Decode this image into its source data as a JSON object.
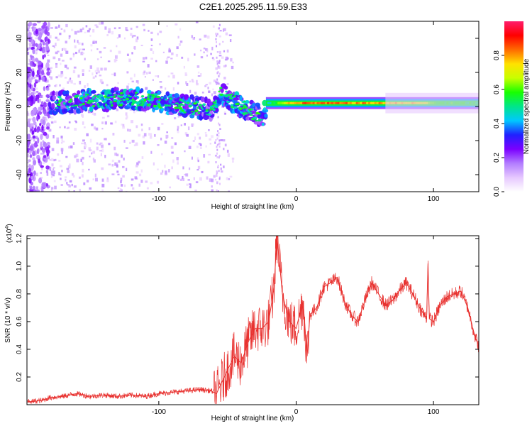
{
  "figure_title": "C2E1.2025.295.11.59.E33",
  "chart_data": [
    {
      "type": "heatmap",
      "title": "C2E1.2025.295.11.59.E33",
      "xlabel": "Height of straight line (km)",
      "ylabel": "Frequency (Hz)",
      "xlim": [
        -196,
        133
      ],
      "ylim": [
        -50,
        50
      ],
      "x_ticks": [
        -100,
        0,
        100
      ],
      "x_tick_labels": [
        "-100",
        "0",
        "100"
      ],
      "y_ticks": [
        -40,
        -20,
        0,
        20,
        40
      ],
      "y_tick_labels": [
        "-40",
        "-20",
        "0",
        "20",
        "40"
      ],
      "colorbar": {
        "label": "Normalized spectral amplitude",
        "range": [
          0.0,
          1.0
        ],
        "ticks": [
          0.0,
          0.2,
          0.4,
          0.6,
          0.8
        ],
        "tick_labels": [
          "0.0",
          "0.2",
          "0.4",
          "0.6",
          "0.8"
        ],
        "colormap": [
          "#ffffff",
          "#e6c8ff",
          "#b27cff",
          "#7b00ff",
          "#2020ff",
          "#00c8ff",
          "#00e58a",
          "#18ff00",
          "#c8ff00",
          "#ffe100",
          "#ff6a00",
          "#ff0000",
          "#ff1d6c"
        ]
      },
      "ridge_profile": {
        "x": [
          -180,
          -160,
          -140,
          -120,
          -100,
          -80,
          -60,
          -55,
          -40,
          -25,
          -20,
          -10,
          0,
          20,
          60,
          90,
          100,
          133
        ],
        "center_freq": [
          2,
          3,
          4,
          5,
          3,
          0,
          -2,
          7,
          0,
          -6,
          3,
          2,
          2,
          2,
          2,
          3,
          2,
          2
        ],
        "amplitude": [
          0.25,
          0.3,
          0.35,
          0.35,
          0.32,
          0.3,
          0.25,
          0.3,
          0.33,
          0.3,
          0.45,
          0.7,
          0.85,
          0.85,
          0.8,
          0.75,
          0.6,
          0.55
        ]
      }
    },
    {
      "type": "line",
      "xlabel": "Height of straight line (km)",
      "ylabel": "SNR (10 * v/v)",
      "yscale_label": "(x10",
      "yscale_exponent": "4",
      "yscale_suffix": ")",
      "xlim": [
        -196,
        133
      ],
      "ylim": [
        0,
        1.22
      ],
      "x_ticks": [
        -100,
        0,
        100
      ],
      "x_tick_labels": [
        "-100",
        "0",
        "100"
      ],
      "y_ticks": [
        0.2,
        0.4,
        0.6,
        0.8,
        1.0,
        1.2
      ],
      "y_tick_labels": [
        "0.2",
        "0.4",
        "0.6",
        "0.8",
        "1.0",
        "1.2"
      ],
      "color": "#e8312f",
      "series": [
        {
          "name": "SNR",
          "x": [
            -196,
            -185,
            -180,
            -170,
            -160,
            -150,
            -140,
            -130,
            -120,
            -110,
            -100,
            -90,
            -80,
            -70,
            -62,
            -58,
            -50,
            -45,
            -40,
            -35,
            -30,
            -25,
            -20,
            -16,
            -14,
            -10,
            -5,
            0,
            5,
            8,
            10,
            15,
            20,
            25,
            30,
            35,
            40,
            45,
            50,
            55,
            60,
            65,
            70,
            75,
            80,
            85,
            90,
            95,
            96,
            97,
            100,
            105,
            110,
            115,
            120,
            125,
            130,
            133
          ],
          "y": [
            0.02,
            0.03,
            0.05,
            0.06,
            0.08,
            0.06,
            0.07,
            0.06,
            0.07,
            0.06,
            0.08,
            0.09,
            0.1,
            0.11,
            0.1,
            0.08,
            0.25,
            0.35,
            0.3,
            0.45,
            0.55,
            0.55,
            0.6,
            0.85,
            1.22,
            0.8,
            0.6,
            0.55,
            0.75,
            0.35,
            0.65,
            0.7,
            0.85,
            0.88,
            0.92,
            0.75,
            0.65,
            0.6,
            0.75,
            0.88,
            0.8,
            0.72,
            0.75,
            0.82,
            0.88,
            0.8,
            0.7,
            0.62,
            1.02,
            0.62,
            0.6,
            0.72,
            0.78,
            0.8,
            0.82,
            0.7,
            0.5,
            0.42
          ]
        }
      ]
    }
  ]
}
